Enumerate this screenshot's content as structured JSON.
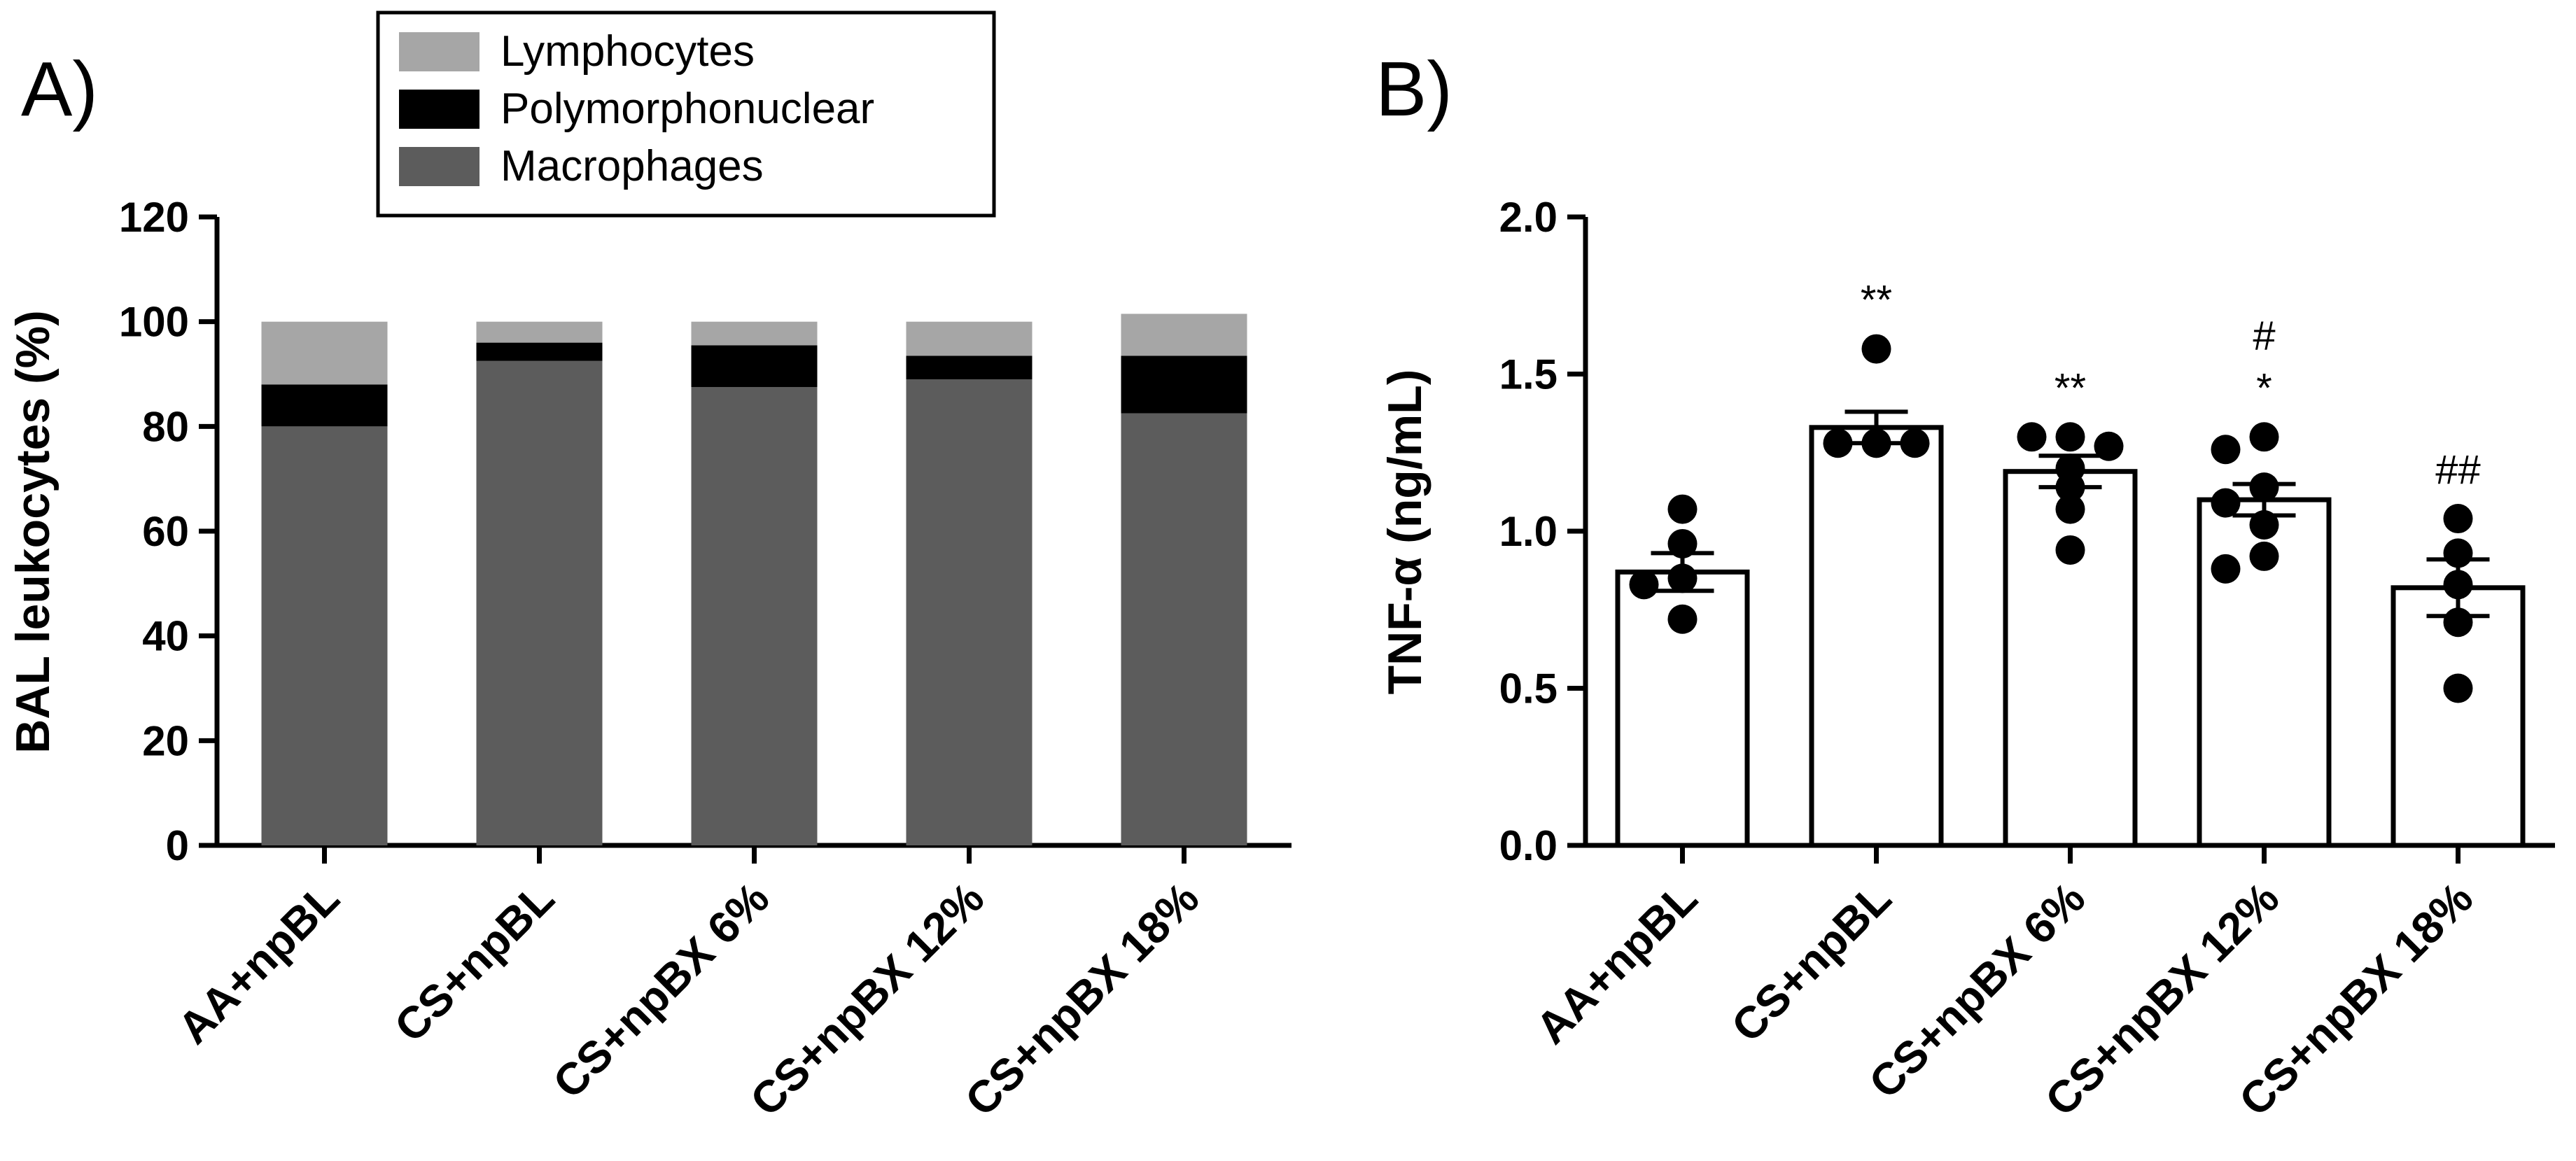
{
  "chart_data": [
    {
      "panel": "A)",
      "type": "bar",
      "stacked": true,
      "ylabel": "BAL leukocytes (%)",
      "ylim": [
        0,
        120
      ],
      "yticks": [
        0,
        20,
        40,
        60,
        80,
        100,
        120
      ],
      "categories": [
        "AA+npBL",
        "CS+npBL",
        "CS+npBX 6%",
        "CS+npBX 12%",
        "CS+npBX 18%"
      ],
      "series": [
        {
          "name": "Macrophages",
          "color": "#5c5c5c",
          "values": [
            80,
            92.5,
            87.5,
            89,
            82.5
          ]
        },
        {
          "name": "Polymorphonuclear",
          "color": "#000000",
          "values": [
            8,
            3.5,
            8,
            4.5,
            11
          ]
        },
        {
          "name": "Lymphocytes",
          "color": "#a6a6a6",
          "values": [
            12,
            4,
            4.5,
            6.5,
            8
          ]
        }
      ],
      "legend_order": [
        "Lymphocytes",
        "Polymorphonuclear",
        "Macrophages"
      ],
      "legend_position": "top"
    },
    {
      "panel": "B)",
      "type": "bar",
      "ylabel": "TNF-α (ng/mL)",
      "ylim": [
        0,
        2.0
      ],
      "yticks": [
        "0.0",
        "0.5",
        "1.0",
        "1.5",
        "2.0"
      ],
      "categories": [
        "AA+npBL",
        "CS+npBL",
        "CS+npBX 6%",
        "CS+npBX 12%",
        "CS+npBX 18%"
      ],
      "means": [
        0.87,
        1.33,
        1.19,
        1.1,
        0.82
      ],
      "sem": [
        0.06,
        0.05,
        0.05,
        0.05,
        0.09
      ],
      "points": [
        [
          1.07,
          0.96,
          0.85,
          0.83,
          0.72
        ],
        [
          1.58,
          1.28,
          1.28,
          1.28,
          1.28
        ],
        [
          1.3,
          1.3,
          1.27,
          1.2,
          1.14,
          1.07,
          0.94
        ],
        [
          1.3,
          1.26,
          1.14,
          1.09,
          1.02,
          0.92,
          0.88
        ],
        [
          1.04,
          0.93,
          0.83,
          0.71,
          0.5
        ]
      ],
      "annotations": [
        [],
        [
          "**"
        ],
        [
          "**"
        ],
        [
          "#",
          "*"
        ],
        [
          "##"
        ]
      ]
    }
  ]
}
